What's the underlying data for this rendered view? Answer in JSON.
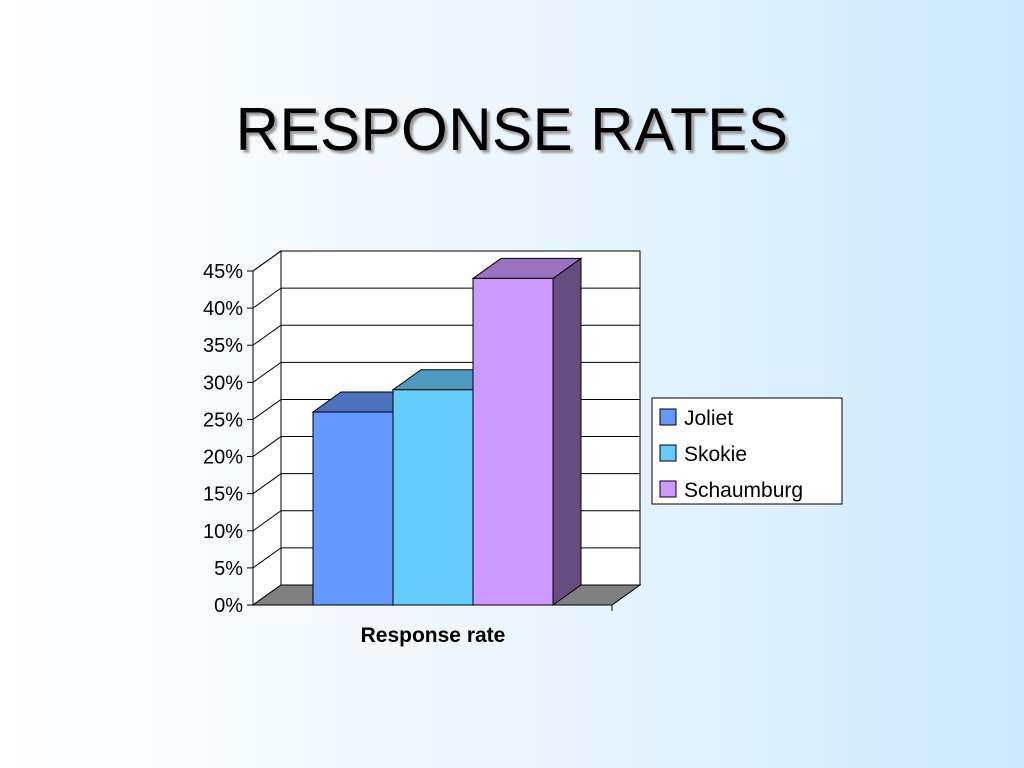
{
  "slide": {
    "title": "RESPONSE RATES"
  },
  "chart_data": {
    "type": "bar",
    "categories": [
      "Response rate"
    ],
    "series": [
      {
        "name": "Joliet",
        "values": [
          0.26
        ],
        "color": "#6699ff"
      },
      {
        "name": "Skokie",
        "values": [
          0.29
        ],
        "color": "#66ccff"
      },
      {
        "name": "Schaumburg",
        "values": [
          0.44
        ],
        "color": "#cc99ff"
      }
    ],
    "yticks": [
      "0%",
      "5%",
      "10%",
      "15%",
      "20%",
      "25%",
      "30%",
      "35%",
      "40%",
      "45%"
    ],
    "ylim": [
      0,
      0.45
    ],
    "style": "3d-column",
    "grid": true,
    "legend": "right"
  }
}
